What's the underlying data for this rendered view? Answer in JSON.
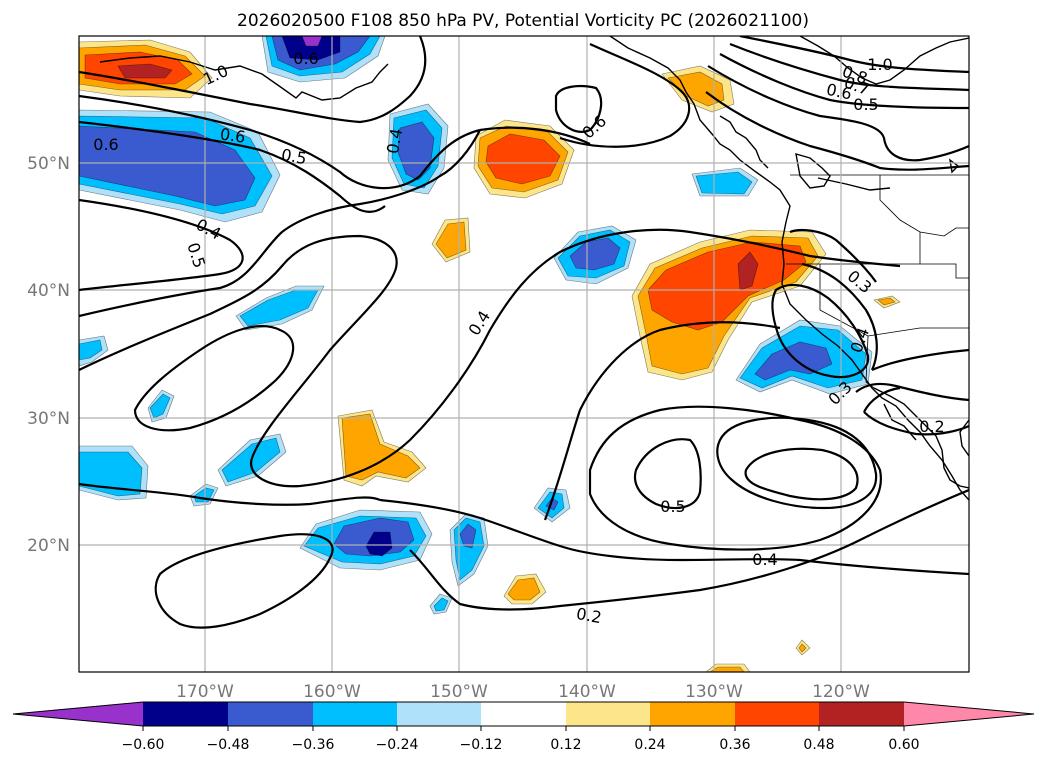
{
  "title": "2026020500 F108 850 hPa PV, Potential Vorticity PC (2026021100)",
  "chart_data": {
    "type": "heatmap",
    "title": "2026020500 F108 850 hPa PV, Potential Vorticity PC (2026021100)",
    "map_extent": {
      "lon": [
        -180,
        -110
      ],
      "lat": [
        10,
        60
      ]
    },
    "x_ticks": [
      {
        "lon": -170,
        "label": "170°W"
      },
      {
        "lon": -160,
        "label": "160°W"
      },
      {
        "lon": -150,
        "label": "150°W"
      },
      {
        "lon": -140,
        "label": "140°W"
      },
      {
        "lon": -130,
        "label": "130°W"
      },
      {
        "lon": -120,
        "label": "120°W"
      }
    ],
    "y_ticks": [
      {
        "lat": 50,
        "label": "50°N"
      },
      {
        "lat": 40,
        "label": "40°N"
      },
      {
        "lat": 30,
        "label": "30°N"
      },
      {
        "lat": 20,
        "label": "20°N"
      }
    ],
    "grid": true,
    "colorbar": {
      "orientation": "horizontal",
      "extend": "both",
      "levels": [
        -0.6,
        -0.48,
        -0.36,
        -0.24,
        -0.12,
        0.12,
        0.24,
        0.36,
        0.48,
        0.6
      ],
      "tick_labels": [
        "−0.60",
        "−0.48",
        "−0.36",
        "−0.24",
        "−0.12",
        "0.12",
        "0.24",
        "0.36",
        "0.48",
        "0.60"
      ],
      "colors": [
        "#9932cc",
        "#00008b",
        "#3a5bd0",
        "#00bfff",
        "#afe1fb",
        "#ffffff",
        "#fde68a",
        "#ffa500",
        "#ff4500",
        "#b22222",
        "#ff88aa"
      ]
    },
    "shaded_features": [
      {
        "name": "pos-nw-corner",
        "sign": "positive",
        "peak": 0.48,
        "center": [
          -176,
          57.5
        ]
      },
      {
        "name": "neg-top",
        "sign": "negative",
        "peak": -0.6,
        "center": [
          -161,
          58.5
        ]
      },
      {
        "name": "neg-west-50n",
        "sign": "negative",
        "peak": -0.36,
        "center": [
          -172,
          50
        ]
      },
      {
        "name": "neg-near-52n",
        "sign": "negative",
        "peak": -0.36,
        "center": [
          -154,
          51
        ]
      },
      {
        "name": "pos-near-51n",
        "sign": "positive",
        "peak": 0.36,
        "center": [
          -145,
          50.5
        ]
      },
      {
        "name": "pos-alaska",
        "sign": "positive",
        "peak": 0.24,
        "center": [
          -130,
          57
        ]
      },
      {
        "name": "neg-near-49n",
        "sign": "negative",
        "peak": -0.24,
        "center": [
          -128.5,
          49
        ]
      },
      {
        "name": "neg-near-42n",
        "sign": "negative",
        "peak": -0.36,
        "center": [
          -139,
          42.5
        ]
      },
      {
        "name": "pos-near-44n",
        "sign": "positive",
        "peak": 0.24,
        "center": [
          -149.5,
          44
        ]
      },
      {
        "name": "pos-large-east",
        "sign": "positive",
        "peak": 0.48,
        "center": [
          -128.5,
          40
        ]
      },
      {
        "name": "neg-off-california",
        "sign": "negative",
        "peak": -0.36,
        "center": [
          -124,
          34.5
        ]
      },
      {
        "name": "neg-near-39n",
        "sign": "negative",
        "peak": -0.24,
        "center": [
          -164,
          39
        ]
      },
      {
        "name": "pos-near-27n",
        "sign": "positive",
        "peak": 0.24,
        "center": [
          -155.5,
          27
        ]
      },
      {
        "name": "neg-hawaii",
        "sign": "negative",
        "peak": -0.6,
        "center": [
          -158,
          20.5
        ]
      },
      {
        "name": "neg-near-19n",
        "sign": "negative",
        "peak": -0.36,
        "center": [
          -151,
          19
        ]
      },
      {
        "name": "neg-west-26n",
        "sign": "negative",
        "peak": -0.24,
        "center": [
          -177,
          26
        ]
      },
      {
        "name": "pos-near-17n",
        "sign": "positive",
        "peak": 0.24,
        "center": [
          -145,
          17
        ]
      }
    ],
    "contour_labels": [
      {
        "text": "1.0",
        "lon": -168.9,
        "lat": 57.9
      },
      {
        "text": "0.6",
        "lon": -158.4,
        "lat": 56.7
      },
      {
        "text": "0.6",
        "lon": -177.8,
        "lat": 52.2
      },
      {
        "text": "0.6",
        "lon": -169.8,
        "lat": 52.1
      },
      {
        "text": "0.5",
        "lon": -165.7,
        "lat": 50.5
      },
      {
        "text": "0.4",
        "lon": -156.8,
        "lat": 53.4
      },
      {
        "text": "0.4",
        "lon": -171.7,
        "lat": 45.2
      },
      {
        "text": "0.5",
        "lon": -172.3,
        "lat": 43.1
      },
      {
        "text": "0.6",
        "lon": -139.2,
        "lat": 53.3
      },
      {
        "text": "0.4",
        "lon": -149.0,
        "lat": 38.0
      },
      {
        "text": "1.0",
        "lon": -117.0,
        "lat": 58.7
      },
      {
        "text": "0.8",
        "lon": -119.6,
        "lat": 57.9
      },
      {
        "text": "0.7",
        "lon": -119.5,
        "lat": 57.0
      },
      {
        "text": "0.6",
        "lon": -121.5,
        "lat": 56.1
      },
      {
        "text": "0.5",
        "lon": -118.0,
        "lat": 55.0
      },
      {
        "text": "0.3",
        "lon": -119.0,
        "lat": 40.9
      },
      {
        "text": "0.4",
        "lon": -118.1,
        "lat": 36.6
      },
      {
        "text": "0.3",
        "lon": -119.6,
        "lat": 32.1
      },
      {
        "text": "0.2",
        "lon": -112.7,
        "lat": 29.1
      },
      {
        "text": "0.5",
        "lon": -137.3,
        "lat": 23.1
      },
      {
        "text": "0.4",
        "lon": -126.3,
        "lat": 19.0
      },
      {
        "text": "0.2",
        "lon": -142.8,
        "lat": 14.4
      }
    ]
  }
}
